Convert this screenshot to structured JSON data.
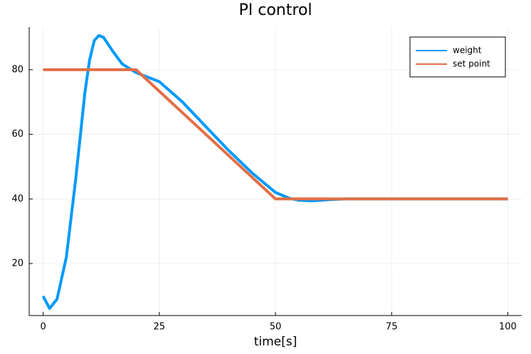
{
  "chart_data": {
    "type": "line",
    "title": "PI control",
    "x_label": "time[s]",
    "xlim": [
      -3,
      103
    ],
    "ylim": [
      3.9,
      93.2
    ],
    "xticks": [
      0,
      25,
      50,
      75,
      100
    ],
    "yticks": [
      20,
      40,
      60,
      80
    ],
    "grid": true,
    "legend": "top-right",
    "series": [
      {
        "name": "weight",
        "color": "#009af9",
        "x": [
          0,
          1.4,
          3,
          5,
          7,
          9,
          10,
          11,
          12,
          13,
          15,
          17,
          20,
          25,
          30,
          35,
          40,
          45,
          50,
          53,
          55,
          58,
          62,
          65,
          80,
          100
        ],
        "values": [
          9.9,
          6.1,
          9,
          22,
          46,
          73,
          83,
          89,
          90.6,
          90,
          85.7,
          81.8,
          79.1,
          76.3,
          70,
          62.4,
          54.9,
          48,
          42,
          40.2,
          39.6,
          39.4,
          39.8,
          40,
          40,
          40
        ]
      },
      {
        "name": "set point",
        "color": "#e26f46",
        "x": [
          0,
          20,
          50,
          100
        ],
        "values": [
          80,
          80,
          40,
          40
        ]
      }
    ]
  }
}
